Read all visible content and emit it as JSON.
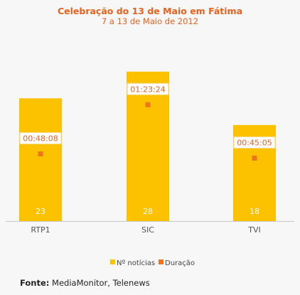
{
  "chart_data": {
    "type": "bar",
    "title": "Celebração do 13 de Maio em Fátima",
    "subtitle": "7 a 13 de Maio de 2012",
    "categories": [
      "RTP1",
      "SIC",
      "TVI"
    ],
    "series": [
      {
        "name": "Nº notícias",
        "values": [
          23,
          28,
          18
        ],
        "color": "#fcc200",
        "axis": "left",
        "ylim": [
          0,
          30.5
        ]
      },
      {
        "name": "Duração",
        "values_seconds": [
          2888,
          5004,
          2705
        ],
        "labels": [
          "00:48:08",
          "01:23:24",
          "00:45:05"
        ],
        "color": "#f0731e",
        "axis": "right",
        "ylim": [
          0,
          7000
        ]
      }
    ],
    "grid": false,
    "legend_position": "bottom"
  },
  "source": {
    "label": "Fonte:",
    "text": "MediaMonitor, Telenews"
  }
}
